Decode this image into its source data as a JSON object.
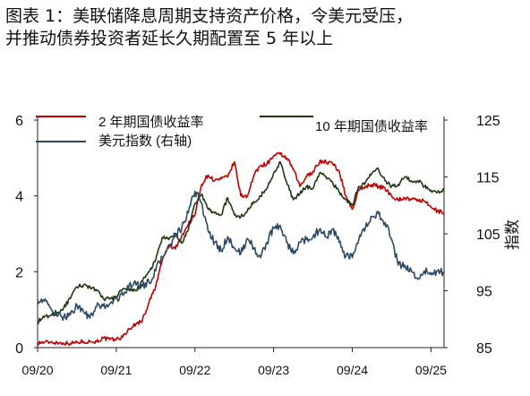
{
  "figure": {
    "title_line1": "图表 1：美联储降息周期支持资产价格，令美元受压，",
    "title_line2": "并推动债券投资者延长久期配置至 5 年以上"
  },
  "chart_data": {
    "type": "line",
    "left_axis": {
      "label": "%",
      "ylim": [
        0,
        6
      ],
      "ticks": [
        0,
        2,
        4,
        6
      ]
    },
    "right_axis": {
      "label": "指数",
      "ylim": [
        85,
        125
      ],
      "ticks": [
        85,
        95,
        105,
        115,
        125
      ]
    },
    "x_ticks": [
      "09/20",
      "09/21",
      "09/22",
      "09/23",
      "09/24",
      "09/25"
    ],
    "x_range": [
      2020.667,
      2025.833
    ],
    "legend": [
      "2 年期国债收益率",
      "10 年期国债收益率",
      "美元指数 (右轴)"
    ],
    "series": [
      {
        "name": "2 年期国债收益率",
        "axis": "left",
        "color": "#c00000",
        "points": [
          [
            2020.667,
            0.13
          ],
          [
            2020.75,
            0.14
          ],
          [
            2020.833,
            0.15
          ],
          [
            2020.917,
            0.13
          ],
          [
            2021.0,
            0.12
          ],
          [
            2021.083,
            0.11
          ],
          [
            2021.167,
            0.14
          ],
          [
            2021.25,
            0.16
          ],
          [
            2021.333,
            0.16
          ],
          [
            2021.417,
            0.16
          ],
          [
            2021.5,
            0.25
          ],
          [
            2021.583,
            0.21
          ],
          [
            2021.667,
            0.22
          ],
          [
            2021.75,
            0.28
          ],
          [
            2021.833,
            0.5
          ],
          [
            2021.917,
            0.62
          ],
          [
            2022.0,
            0.73
          ],
          [
            2022.083,
            1.2
          ],
          [
            2022.167,
            1.6
          ],
          [
            2022.25,
            2.3
          ],
          [
            2022.333,
            2.7
          ],
          [
            2022.417,
            2.6
          ],
          [
            2022.5,
            2.95
          ],
          [
            2022.583,
            3.25
          ],
          [
            2022.667,
            3.5
          ],
          [
            2022.75,
            4.3
          ],
          [
            2022.833,
            4.55
          ],
          [
            2022.917,
            4.4
          ],
          [
            2023.0,
            4.45
          ],
          [
            2023.083,
            4.5
          ],
          [
            2023.167,
            4.9
          ],
          [
            2023.25,
            4.0
          ],
          [
            2023.333,
            4.0
          ],
          [
            2023.417,
            4.55
          ],
          [
            2023.5,
            4.8
          ],
          [
            2023.583,
            4.85
          ],
          [
            2023.667,
            5.05
          ],
          [
            2023.75,
            5.1
          ],
          [
            2023.833,
            5.0
          ],
          [
            2023.917,
            4.7
          ],
          [
            2024.0,
            4.25
          ],
          [
            2024.083,
            4.5
          ],
          [
            2024.167,
            4.65
          ],
          [
            2024.25,
            4.9
          ],
          [
            2024.333,
            4.9
          ],
          [
            2024.417,
            4.85
          ],
          [
            2024.5,
            4.65
          ],
          [
            2024.583,
            4.0
          ],
          [
            2024.667,
            3.65
          ],
          [
            2024.75,
            4.15
          ],
          [
            2024.833,
            4.25
          ],
          [
            2024.917,
            4.3
          ],
          [
            2025.0,
            4.25
          ],
          [
            2025.083,
            4.2
          ],
          [
            2025.167,
            4.0
          ],
          [
            2025.25,
            3.9
          ],
          [
            2025.333,
            3.95
          ],
          [
            2025.417,
            3.9
          ],
          [
            2025.5,
            3.9
          ],
          [
            2025.583,
            3.85
          ],
          [
            2025.667,
            3.7
          ],
          [
            2025.75,
            3.6
          ],
          [
            2025.833,
            3.55
          ]
        ]
      },
      {
        "name": "10 年期国债收益率",
        "axis": "left",
        "color": "#1e3a0f",
        "points": [
          [
            2020.667,
            0.68
          ],
          [
            2020.75,
            0.8
          ],
          [
            2020.833,
            0.85
          ],
          [
            2020.917,
            0.92
          ],
          [
            2021.0,
            1.05
          ],
          [
            2021.083,
            1.3
          ],
          [
            2021.167,
            1.6
          ],
          [
            2021.25,
            1.65
          ],
          [
            2021.333,
            1.6
          ],
          [
            2021.417,
            1.5
          ],
          [
            2021.5,
            1.3
          ],
          [
            2021.583,
            1.28
          ],
          [
            2021.667,
            1.35
          ],
          [
            2021.75,
            1.55
          ],
          [
            2021.833,
            1.5
          ],
          [
            2021.917,
            1.5
          ],
          [
            2022.0,
            1.75
          ],
          [
            2022.083,
            2.0
          ],
          [
            2022.167,
            2.3
          ],
          [
            2022.25,
            2.9
          ],
          [
            2022.333,
            2.85
          ],
          [
            2022.417,
            3.0
          ],
          [
            2022.5,
            2.75
          ],
          [
            2022.583,
            3.1
          ],
          [
            2022.667,
            3.8
          ],
          [
            2022.75,
            4.05
          ],
          [
            2022.833,
            3.65
          ],
          [
            2022.917,
            3.55
          ],
          [
            2023.0,
            3.5
          ],
          [
            2023.083,
            3.95
          ],
          [
            2023.167,
            3.5
          ],
          [
            2023.25,
            3.45
          ],
          [
            2023.333,
            3.6
          ],
          [
            2023.417,
            3.85
          ],
          [
            2023.5,
            4.0
          ],
          [
            2023.583,
            4.2
          ],
          [
            2023.667,
            4.6
          ],
          [
            2023.75,
            4.9
          ],
          [
            2023.833,
            4.35
          ],
          [
            2023.917,
            3.9
          ],
          [
            2024.0,
            4.05
          ],
          [
            2024.083,
            4.25
          ],
          [
            2024.167,
            4.2
          ],
          [
            2024.25,
            4.6
          ],
          [
            2024.333,
            4.5
          ],
          [
            2024.417,
            4.35
          ],
          [
            2024.5,
            4.1
          ],
          [
            2024.583,
            3.9
          ],
          [
            2024.667,
            3.75
          ],
          [
            2024.75,
            4.25
          ],
          [
            2024.833,
            4.35
          ],
          [
            2024.917,
            4.6
          ],
          [
            2025.0,
            4.7
          ],
          [
            2025.083,
            4.4
          ],
          [
            2025.167,
            4.25
          ],
          [
            2025.25,
            4.3
          ],
          [
            2025.333,
            4.5
          ],
          [
            2025.417,
            4.4
          ],
          [
            2025.5,
            4.4
          ],
          [
            2025.583,
            4.25
          ],
          [
            2025.667,
            4.15
          ],
          [
            2025.75,
            4.1
          ],
          [
            2025.833,
            4.15
          ]
        ]
      },
      {
        "name": "美元指数 (右轴)",
        "axis": "right",
        "color": "#2c4a66",
        "points": [
          [
            2020.667,
            93.5
          ],
          [
            2020.75,
            93.2
          ],
          [
            2020.833,
            92.0
          ],
          [
            2020.917,
            90.5
          ],
          [
            2021.0,
            90.5
          ],
          [
            2021.083,
            90.8
          ],
          [
            2021.167,
            92.5
          ],
          [
            2021.25,
            91.3
          ],
          [
            2021.333,
            90.2
          ],
          [
            2021.417,
            92.2
          ],
          [
            2021.5,
            92.3
          ],
          [
            2021.583,
            92.7
          ],
          [
            2021.667,
            93.6
          ],
          [
            2021.75,
            94.2
          ],
          [
            2021.833,
            96.2
          ],
          [
            2021.917,
            96.0
          ],
          [
            2022.0,
            95.8
          ],
          [
            2022.083,
            96.5
          ],
          [
            2022.167,
            98.5
          ],
          [
            2022.25,
            101.0
          ],
          [
            2022.333,
            102.5
          ],
          [
            2022.417,
            104.5
          ],
          [
            2022.5,
            106.0
          ],
          [
            2022.583,
            108.7
          ],
          [
            2022.667,
            112.5
          ],
          [
            2022.75,
            110.5
          ],
          [
            2022.833,
            105.5
          ],
          [
            2022.917,
            103.5
          ],
          [
            2023.0,
            102.0
          ],
          [
            2023.083,
            104.5
          ],
          [
            2023.167,
            102.5
          ],
          [
            2023.25,
            101.5
          ],
          [
            2023.333,
            104.2
          ],
          [
            2023.417,
            102.5
          ],
          [
            2023.5,
            100.8
          ],
          [
            2023.583,
            103.5
          ],
          [
            2023.667,
            106.0
          ],
          [
            2023.75,
            106.5
          ],
          [
            2023.833,
            103.5
          ],
          [
            2023.917,
            101.5
          ],
          [
            2024.0,
            103.5
          ],
          [
            2024.083,
            104.0
          ],
          [
            2024.167,
            104.5
          ],
          [
            2024.25,
            105.8
          ],
          [
            2024.333,
            104.5
          ],
          [
            2024.417,
            105.8
          ],
          [
            2024.5,
            103.5
          ],
          [
            2024.583,
            101.0
          ],
          [
            2024.667,
            100.8
          ],
          [
            2024.75,
            104.0
          ],
          [
            2024.833,
            106.0
          ],
          [
            2024.917,
            108.0
          ],
          [
            2025.0,
            108.5
          ],
          [
            2025.083,
            107.0
          ],
          [
            2025.167,
            104.0
          ],
          [
            2025.25,
            99.5
          ],
          [
            2025.333,
            99.5
          ],
          [
            2025.417,
            98.5
          ],
          [
            2025.5,
            97.0
          ],
          [
            2025.583,
            98.5
          ],
          [
            2025.667,
            97.8
          ],
          [
            2025.75,
            98.5
          ],
          [
            2025.833,
            98.0
          ]
        ]
      }
    ]
  }
}
